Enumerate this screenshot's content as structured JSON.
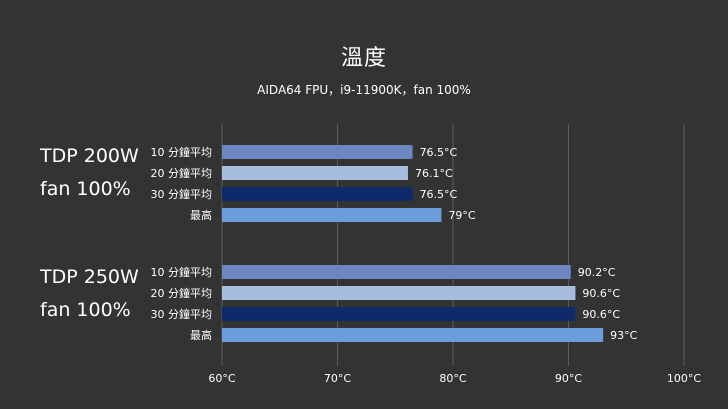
{
  "chart_data": {
    "type": "bar",
    "orientation": "horizontal",
    "title": "溫度",
    "subtitle": "AIDA64 FPU，i9-11900K，fan 100%",
    "xlim": [
      60,
      100
    ],
    "x_ticks": [
      "60°C",
      "70°C",
      "80°C",
      "90°C",
      "100°C"
    ],
    "grid": true,
    "groups": [
      {
        "label_line1": "TDP 200W",
        "label_line2": "fan 100%",
        "bars": [
          {
            "label": "10 分鐘平均",
            "value": 76.5,
            "value_label": "76.5°C",
            "color": "#6b86c0"
          },
          {
            "label": "20 分鐘平均",
            "value": 76.1,
            "value_label": "76.1°C",
            "color": "#a7bde0"
          },
          {
            "label": "30 分鐘平均",
            "value": 76.5,
            "value_label": "76.5°C",
            "color": "#0e2a6b"
          },
          {
            "label": "最高",
            "value": 79,
            "value_label": "79°C",
            "color": "#6b9ddb"
          }
        ]
      },
      {
        "label_line1": "TDP 250W",
        "label_line2": "fan 100%",
        "bars": [
          {
            "label": "10 分鐘平均",
            "value": 90.2,
            "value_label": "90.2°C",
            "color": "#6b86c0"
          },
          {
            "label": "20 分鐘平均",
            "value": 90.6,
            "value_label": "90.6°C",
            "color": "#a7bde0"
          },
          {
            "label": "30 分鐘平均",
            "value": 90.6,
            "value_label": "90.6°C",
            "color": "#0e2a6b"
          },
          {
            "label": "最高",
            "value": 93,
            "value_label": "93°C",
            "color": "#6b9ddb"
          }
        ]
      }
    ]
  }
}
